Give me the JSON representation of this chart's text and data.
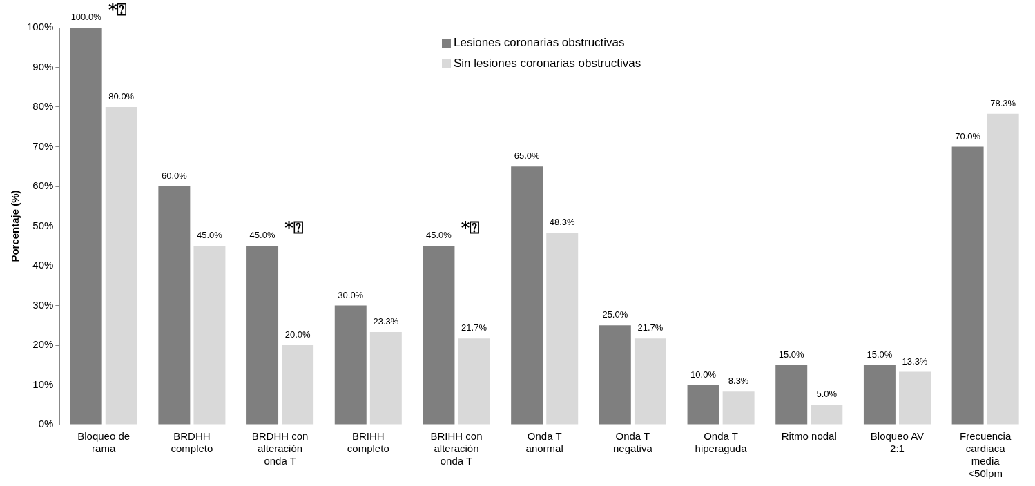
{
  "chart_data": {
    "type": "bar",
    "ylabel": "Porcentaje (%)",
    "categories": [
      "Bloqueo de rama",
      "BRDHH completo",
      "BRDHH con alteración onda T",
      "BRIHH completo",
      "BRIHH con alteración onda T",
      "Onda T anormal",
      "Onda T negativa",
      "Onda T hiperaguda",
      "Ritmo nodal",
      "Bloqueo AV 2:1",
      "Frecuencia cardiaca media <50lpm"
    ],
    "series": [
      {
        "name": "Lesiones coronarias obstructivas",
        "color": "#7f7f7f",
        "values": [
          100,
          60,
          45,
          30,
          45,
          65,
          25,
          10,
          15,
          15,
          70
        ],
        "value_labels": [
          "100.0%",
          "60.0%",
          "45.0%",
          "30.0%",
          "45.0%",
          "65.0%",
          "25.0%",
          "10.0%",
          "15.0%",
          "15.0%",
          "70.0%"
        ]
      },
      {
        "name": "Sin lesiones coronarias obstructivas",
        "color": "#d9d9d9",
        "values": [
          80,
          45,
          20,
          23.3,
          21.7,
          48.3,
          21.7,
          8.3,
          5,
          13.3,
          78.3
        ],
        "value_labels": [
          "80.0%",
          "45.0%",
          "20.0%",
          "23.3%",
          "21.7%",
          "48.3%",
          "21.7%",
          "8.3%",
          "5.0%",
          "13.3%",
          "78.3%"
        ]
      }
    ],
    "ylim": [
      0,
      100
    ],
    "yticks": [
      {
        "value": 0,
        "label": "0%"
      },
      {
        "value": 10,
        "label": "10%"
      },
      {
        "value": 20,
        "label": "20%"
      },
      {
        "value": 30,
        "label": "30%"
      },
      {
        "value": 40,
        "label": "40%"
      },
      {
        "value": 50,
        "label": "50%"
      },
      {
        "value": 60,
        "label": "60%"
      },
      {
        "value": 70,
        "label": "70%"
      },
      {
        "value": 80,
        "label": "80%"
      },
      {
        "value": 90,
        "label": "90%"
      },
      {
        "value": 100,
        "label": "100%"
      }
    ],
    "annotations": [
      {
        "text": "*⍰",
        "x": "Bloqueo de rama",
        "y": 100
      },
      {
        "text": "*⍰",
        "x": "BRDHH con alteración onda T",
        "y": 45
      },
      {
        "text": "*⍰",
        "x": "BRIHH con alteración onda T",
        "y": 45
      }
    ],
    "grid": false,
    "legend": "top"
  }
}
